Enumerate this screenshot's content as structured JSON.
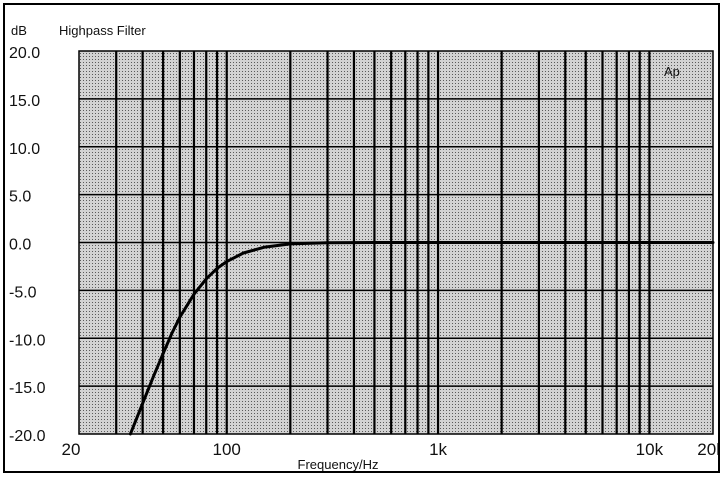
{
  "chart_data": {
    "type": "line",
    "title": "Highpass Filter",
    "ylabel": "dB",
    "xlabel": "Frequency/Hz",
    "corner_mark": "Ap",
    "x_scale": "log",
    "xlim": [
      20,
      20000
    ],
    "ylim": [
      -20,
      20
    ],
    "grid": true,
    "x_ticks": [
      {
        "value": 20,
        "label": "20"
      },
      {
        "value": 100,
        "label": "100"
      },
      {
        "value": 1000,
        "label": "1k"
      },
      {
        "value": 10000,
        "label": "10k"
      },
      {
        "value": 20000,
        "label": "20k"
      }
    ],
    "y_ticks": [
      {
        "value": 20,
        "label": "20.0"
      },
      {
        "value": 15,
        "label": "15.0"
      },
      {
        "value": 10,
        "label": "10.0"
      },
      {
        "value": 5,
        "label": "5.0"
      },
      {
        "value": 0,
        "label": "0.0"
      },
      {
        "value": -5,
        "label": "-5.0"
      },
      {
        "value": -10,
        "label": "-10.0"
      },
      {
        "value": -15,
        "label": "-15.0"
      },
      {
        "value": -20,
        "label": "-20.0"
      }
    ],
    "series": [
      {
        "x": [
          35,
          40,
          45,
          50,
          55,
          60,
          70,
          80,
          90,
          100,
          120,
          150,
          200,
          300,
          500,
          1000,
          2000,
          5000,
          10000,
          20000
        ],
        "y": [
          -20.0,
          -16.8,
          -14.0,
          -11.6,
          -9.5,
          -7.8,
          -5.4,
          -3.8,
          -2.7,
          -2.0,
          -1.1,
          -0.5,
          -0.15,
          -0.03,
          0.0,
          0.0,
          0.0,
          0.0,
          0.0,
          0.0
        ]
      }
    ]
  },
  "colors": {
    "plot_bg": "#c6c6c6",
    "grid": "#000000",
    "curve": "#000000"
  }
}
